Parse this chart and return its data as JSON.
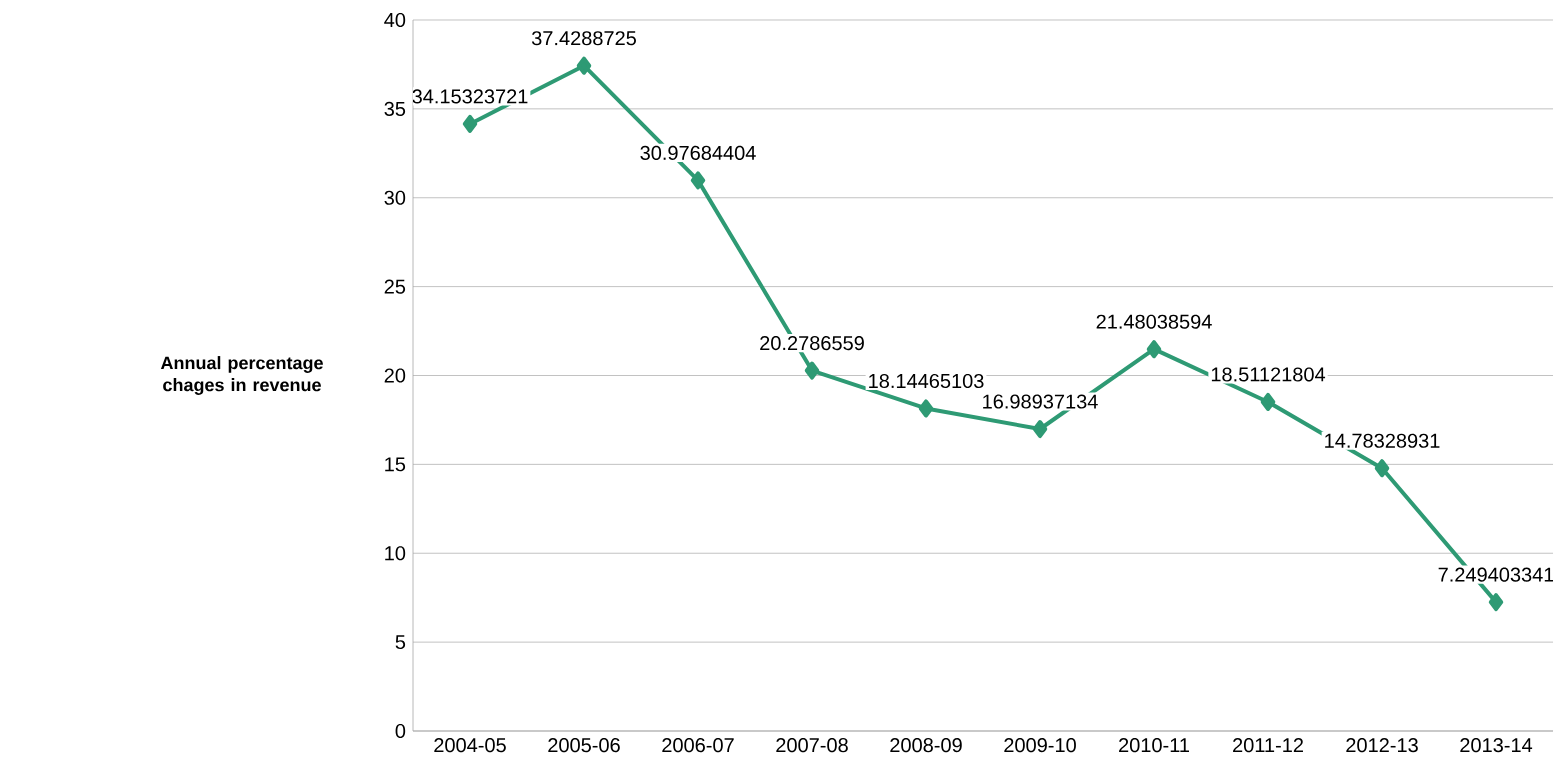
{
  "chart_data": {
    "type": "line",
    "ylabel": "Annual percentage chages in revenue",
    "categories": [
      "2004-05",
      "2005-06",
      "2006-07",
      "2007-08",
      "2008-09",
      "2009-10",
      "2010-11",
      "2011-12",
      "2012-13",
      "2013-14"
    ],
    "values": [
      34.15323721,
      37.4288725,
      30.97684404,
      20.2786559,
      18.14465103,
      16.98937134,
      21.48038594,
      18.51121804,
      14.78328931,
      7.249403341
    ],
    "color": "#2e9a74",
    "ylim": [
      0,
      40
    ],
    "yticks": [
      0,
      5,
      10,
      15,
      20,
      25,
      30,
      35,
      40
    ],
    "grid": "y",
    "marker": "diamond",
    "line_style": "solid",
    "data_labels": true
  }
}
